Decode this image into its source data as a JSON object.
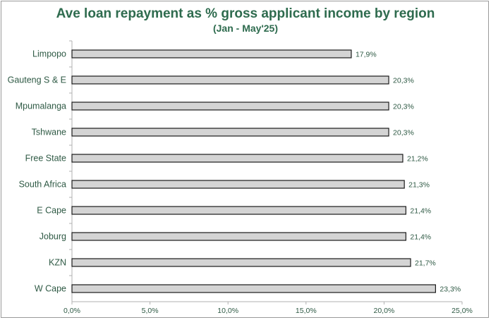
{
  "chart_data": {
    "type": "bar",
    "orientation": "horizontal",
    "title": "Ave loan repayment as % gross applicant income by region",
    "subtitle": "(Jan - May'25)",
    "categories": [
      "Limpopo",
      "Gauteng S & E",
      "Mpumalanga",
      "Tshwane",
      "Free State",
      "South Africa",
      "E Cape",
      "Joburg",
      "KZN",
      "W Cape"
    ],
    "values": [
      17.9,
      20.3,
      20.3,
      20.3,
      21.2,
      21.3,
      21.4,
      21.4,
      21.7,
      23.3
    ],
    "value_labels": [
      "17,9%",
      "20,3%",
      "20,3%",
      "20,3%",
      "21,2%",
      "21,3%",
      "21,4%",
      "21,4%",
      "21,7%",
      "23,3%"
    ],
    "xlim": [
      0,
      25
    ],
    "xticks": [
      0,
      5,
      10,
      15,
      20,
      25
    ],
    "xtick_labels": [
      "0,0%",
      "5,0%",
      "10,0%",
      "15,0%",
      "20,0%",
      "25,0%"
    ],
    "xlabel": "",
    "ylabel": "",
    "grid": false,
    "colors": {
      "bar_fill": "#d4d4d4",
      "bar_stroke": "#1a1a1a",
      "text": "#2f5a45",
      "title": "#2e6b4e"
    }
  }
}
